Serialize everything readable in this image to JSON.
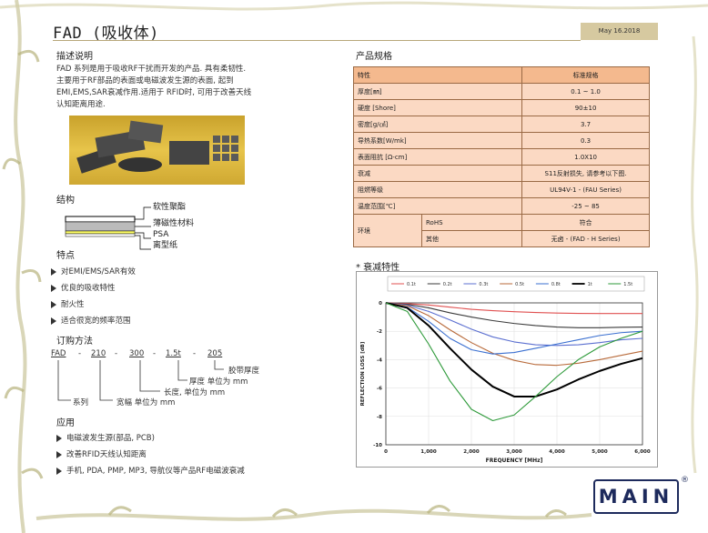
{
  "header": {
    "title": "FAD (吸收体)",
    "date": "May 16.2018"
  },
  "description": {
    "heading": "描述说明",
    "lines": [
      "FAD 系列是用于吸收RF干扰而开发的产品. 具有柔韧性.",
      "主要用于RF部品的表面或电磁波发生源的表面, 起到",
      "EMI,EMS,SAR衰减作用.适用于 RFID时, 可用于改善天线",
      "认知距离用途."
    ]
  },
  "structure": {
    "heading": "结构",
    "layers": [
      "软性聚酯",
      "薄磁性材料",
      "PSA",
      "离型纸"
    ]
  },
  "features": {
    "heading": "特点",
    "items": [
      "对EMI/EMS/SAR有效",
      "优良的吸收特性",
      "耐火性",
      "适合很宽的频率范围"
    ]
  },
  "ordering": {
    "heading": "订购方法",
    "parts": [
      "FAD",
      "210",
      "300",
      "1.5t",
      "205"
    ],
    "dash": "-",
    "labels": {
      "series": "系列",
      "width": "宽幅 单位为 mm",
      "length": "长度, 单位为 mm",
      "thickness": "厚度 单位为 mm",
      "tape": "胶带厚度"
    }
  },
  "applications": {
    "heading": "应用",
    "items": [
      "电磁波发生源(部品, PCB)",
      "改善RFID天线认知距离",
      "手机, PDA, PMP, MP3, 导航仪等产品RF电磁波衰减"
    ]
  },
  "spec": {
    "heading": "产品规格",
    "header": [
      "特性",
      "标准规格"
    ],
    "rows": [
      [
        "厚度[㎜]",
        "0.1 ~ 1.0"
      ],
      [
        "硬度 [Shore]",
        "90±10"
      ],
      [
        "密度[g/㎤]",
        "3.7"
      ],
      [
        "导热系数[W/mk]",
        "0.3"
      ],
      [
        "表面阻抗  [Ω-cm]",
        "1.0X10"
      ],
      [
        "衰减",
        "S11反射损失, 请参考以下图."
      ],
      [
        "阻燃等级",
        "UL94V-1 - (FAU Series)"
      ],
      [
        "温度范围[℃]",
        "-25 ~ 85"
      ]
    ],
    "env_label": "环境",
    "env_rows": [
      [
        "RoHS",
        "符合"
      ],
      [
        "其他",
        "无卤 - (FAD - H Series)"
      ]
    ]
  },
  "chart_heading": "* 衰减特性",
  "chart_data": {
    "type": "line",
    "xlabel": "FREQUENCY [MHz]",
    "ylabel": "REFLECTION LOSS [dB]",
    "xlim": [
      0,
      6000
    ],
    "ylim": [
      -10,
      0
    ],
    "xticks": [
      "0",
      "1,000",
      "2,000",
      "3,000",
      "4,000",
      "5,000",
      "6,000"
    ],
    "yticks": [
      "0",
      "-2",
      "-4",
      "-6",
      "-8",
      "-10"
    ],
    "x": [
      0,
      500,
      1000,
      1500,
      2000,
      2500,
      3000,
      3500,
      4000,
      4500,
      5000,
      5500,
      6000
    ],
    "series": [
      {
        "name": "0.1t",
        "color": "#e05050",
        "values": [
          0,
          -0.05,
          -0.15,
          -0.3,
          -0.45,
          -0.55,
          -0.62,
          -0.68,
          -0.72,
          -0.74,
          -0.75,
          -0.75,
          -0.75
        ]
      },
      {
        "name": "0.2t",
        "color": "#3a3a3a",
        "values": [
          0,
          -0.1,
          -0.35,
          -0.7,
          -1.0,
          -1.25,
          -1.45,
          -1.6,
          -1.7,
          -1.75,
          -1.75,
          -1.72,
          -1.7
        ]
      },
      {
        "name": "0.3t",
        "color": "#5b6fd0",
        "values": [
          0,
          -0.15,
          -0.6,
          -1.2,
          -1.85,
          -2.4,
          -2.75,
          -2.95,
          -3.0,
          -2.95,
          -2.8,
          -2.6,
          -2.5
        ]
      },
      {
        "name": "0.5t",
        "color": "#b86a3a",
        "values": [
          0,
          -0.2,
          -0.9,
          -1.9,
          -2.8,
          -3.55,
          -4.05,
          -4.35,
          -4.4,
          -4.25,
          -4.0,
          -3.7,
          -3.4
        ]
      },
      {
        "name": "0.8t",
        "color": "#3a6fd0",
        "values": [
          0,
          -0.3,
          -1.3,
          -2.5,
          -3.3,
          -3.6,
          -3.5,
          -3.2,
          -2.9,
          -2.6,
          -2.3,
          -2.1,
          -2.0
        ]
      },
      {
        "name": "1t",
        "color": "#000000",
        "values": [
          0,
          -0.35,
          -1.6,
          -3.2,
          -4.7,
          -5.9,
          -6.6,
          -6.6,
          -6.1,
          -5.4,
          -4.8,
          -4.3,
          -3.9
        ]
      },
      {
        "name": "1.5t",
        "color": "#2e9a3a",
        "values": [
          0,
          -0.6,
          -2.9,
          -5.5,
          -7.5,
          -8.3,
          -7.9,
          -6.6,
          -5.2,
          -4.0,
          -3.1,
          -2.5,
          -2.0
        ]
      }
    ]
  },
  "logo": {
    "text": "MAIN",
    "mark": "®"
  },
  "colors": {
    "table_header": "#f4b98e",
    "table_cell": "#fbd9c3",
    "table_border": "#9a6a45",
    "date_bg": "#d6c9a0"
  }
}
